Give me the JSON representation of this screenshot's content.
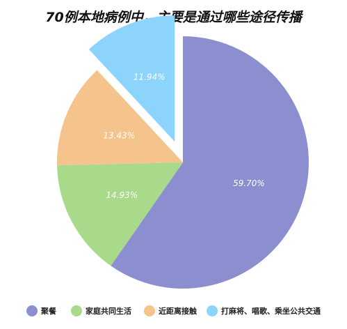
{
  "chart_data": {
    "type": "pie",
    "title": "70例本地病例中，主要是通过哪些途径传播",
    "labels": [
      "聚餐",
      "家庭共同生活",
      "近距离接触",
      "打麻将、唱歌、乘坐公共交通"
    ],
    "values": [
      59.7,
      14.93,
      13.43,
      11.94
    ],
    "value_labels": [
      "59.70%",
      "14.93%",
      "13.43%",
      "11.94%"
    ],
    "colors": [
      "#8b8fcf",
      "#a9d98a",
      "#f5c48c",
      "#8cd4fb"
    ],
    "start": "12 o'clock",
    "direction": "clockwise",
    "exploded": [
      "打麻将、唱歌、乘坐公共交通"
    ],
    "legend_position": "bottom"
  }
}
